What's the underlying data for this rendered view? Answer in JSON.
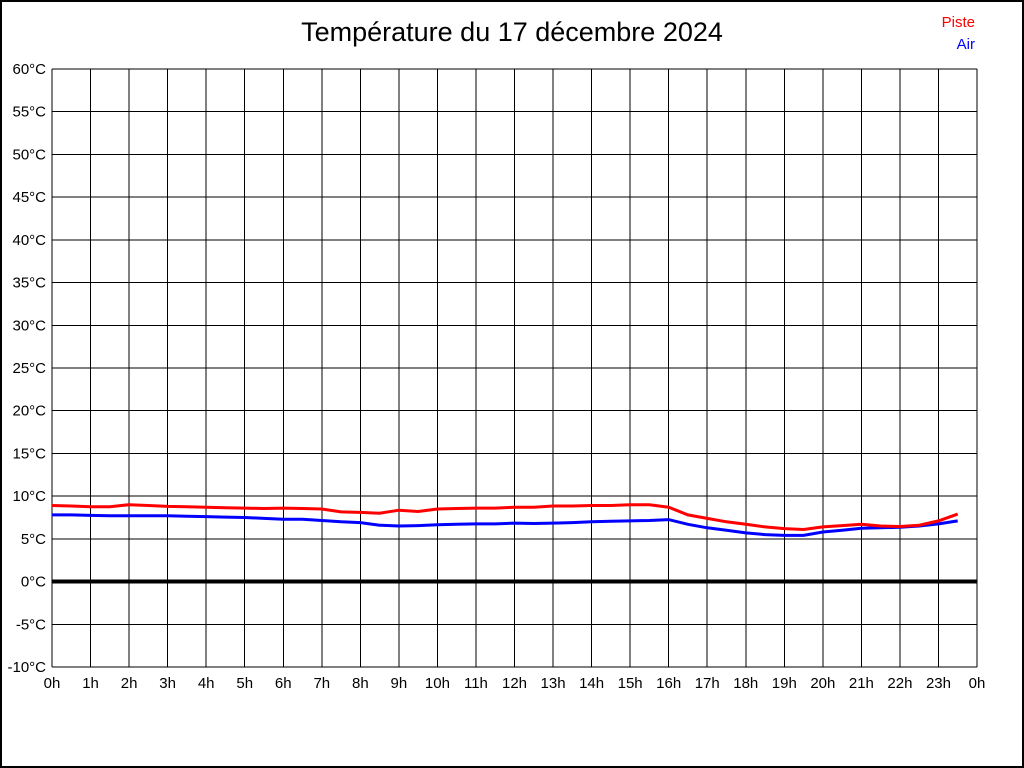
{
  "title": "Température du 17 décembre 2024",
  "legend": {
    "items": [
      {
        "label": "Piste",
        "color": "#ff0000"
      },
      {
        "label": "Air",
        "color": "#0000ff"
      }
    ]
  },
  "chart_data": {
    "type": "line",
    "title": "Température du 17 décembre 2024",
    "xlabel": "",
    "ylabel": "",
    "xlim": [
      0,
      24
    ],
    "ylim": [
      -10,
      60
    ],
    "grid": true,
    "legend_position": "top-right",
    "background": "#ffffff",
    "grid_color": "#000000",
    "zero_line": {
      "value": 0,
      "color": "#000000",
      "width": 4
    },
    "x": [
      0,
      0.5,
      1,
      1.5,
      2,
      2.5,
      3,
      3.5,
      4,
      4.5,
      5,
      5.5,
      6,
      6.5,
      7,
      7.5,
      8,
      8.5,
      9,
      9.5,
      10,
      10.5,
      11,
      11.5,
      12,
      12.5,
      13,
      13.5,
      14,
      14.5,
      15,
      15.5,
      16,
      16.5,
      17,
      17.5,
      18,
      18.5,
      19,
      19.5,
      20,
      20.5,
      21,
      21.5,
      22,
      22.5,
      23,
      23.5
    ],
    "series": [
      {
        "name": "Piste",
        "color": "#ff0000",
        "values": [
          8.9,
          8.85,
          8.75,
          8.75,
          9.0,
          8.9,
          8.8,
          8.75,
          8.7,
          8.65,
          8.6,
          8.55,
          8.6,
          8.55,
          8.5,
          8.15,
          8.1,
          8.0,
          8.35,
          8.2,
          8.5,
          8.55,
          8.6,
          8.6,
          8.7,
          8.7,
          8.85,
          8.85,
          8.9,
          8.9,
          9.0,
          9.0,
          8.7,
          7.8,
          7.4,
          7.0,
          6.7,
          6.4,
          6.2,
          6.1,
          6.4,
          6.55,
          6.7,
          6.5,
          6.45,
          6.6,
          7.1,
          7.9
        ]
      },
      {
        "name": "Air",
        "color": "#0000ff",
        "values": [
          7.8,
          7.8,
          7.75,
          7.7,
          7.7,
          7.7,
          7.7,
          7.65,
          7.6,
          7.55,
          7.5,
          7.4,
          7.3,
          7.3,
          7.15,
          7.0,
          6.9,
          6.6,
          6.5,
          6.55,
          6.65,
          6.7,
          6.75,
          6.75,
          6.85,
          6.8,
          6.85,
          6.9,
          7.0,
          7.05,
          7.1,
          7.15,
          7.25,
          6.7,
          6.3,
          6.0,
          5.7,
          5.5,
          5.4,
          5.4,
          5.8,
          6.0,
          6.25,
          6.3,
          6.35,
          6.5,
          6.75,
          7.1
        ]
      }
    ],
    "x_ticks": [
      {
        "v": 0,
        "label": "0h"
      },
      {
        "v": 1,
        "label": "1h"
      },
      {
        "v": 2,
        "label": "2h"
      },
      {
        "v": 3,
        "label": "3h"
      },
      {
        "v": 4,
        "label": "4h"
      },
      {
        "v": 5,
        "label": "5h"
      },
      {
        "v": 6,
        "label": "6h"
      },
      {
        "v": 7,
        "label": "7h"
      },
      {
        "v": 8,
        "label": "8h"
      },
      {
        "v": 9,
        "label": "9h"
      },
      {
        "v": 10,
        "label": "10h"
      },
      {
        "v": 11,
        "label": "11h"
      },
      {
        "v": 12,
        "label": "12h"
      },
      {
        "v": 13,
        "label": "13h"
      },
      {
        "v": 14,
        "label": "14h"
      },
      {
        "v": 15,
        "label": "15h"
      },
      {
        "v": 16,
        "label": "16h"
      },
      {
        "v": 17,
        "label": "17h"
      },
      {
        "v": 18,
        "label": "18h"
      },
      {
        "v": 19,
        "label": "19h"
      },
      {
        "v": 20,
        "label": "20h"
      },
      {
        "v": 21,
        "label": "21h"
      },
      {
        "v": 22,
        "label": "22h"
      },
      {
        "v": 23,
        "label": "23h"
      },
      {
        "v": 24,
        "label": "0h"
      }
    ],
    "y_ticks": [
      {
        "v": -10,
        "label": "-10°C"
      },
      {
        "v": -5,
        "label": "-5°C"
      },
      {
        "v": 0,
        "label": "0°C"
      },
      {
        "v": 5,
        "label": "5°C"
      },
      {
        "v": 10,
        "label": "10°C"
      },
      {
        "v": 15,
        "label": "15°C"
      },
      {
        "v": 20,
        "label": "20°C"
      },
      {
        "v": 25,
        "label": "25°C"
      },
      {
        "v": 30,
        "label": "30°C"
      },
      {
        "v": 35,
        "label": "35°C"
      },
      {
        "v": 40,
        "label": "40°C"
      },
      {
        "v": 45,
        "label": "45°C"
      },
      {
        "v": 50,
        "label": "50°C"
      },
      {
        "v": 55,
        "label": "55°C"
      },
      {
        "v": 60,
        "label": "60°C"
      }
    ]
  }
}
